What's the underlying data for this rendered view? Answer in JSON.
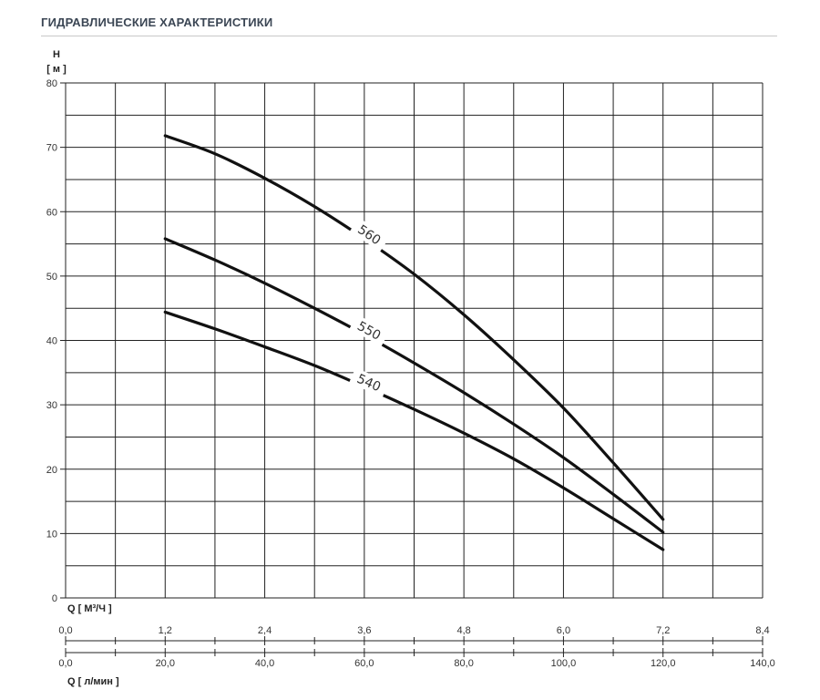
{
  "header": {
    "title": "ГИДРАВЛИЧЕСКИЕ ХАРАКТЕРИСТИКИ"
  },
  "chart_data": {
    "type": "line",
    "ylabel_line1": "H",
    "ylabel_line2": "[ м ]",
    "ylim": [
      0,
      80
    ],
    "yticks": [
      0,
      10,
      20,
      30,
      40,
      50,
      60,
      70,
      80
    ],
    "xlabel": "Q [ М³/Ч ]",
    "xlim": [
      0,
      8.4
    ],
    "xticks": [
      "0,0",
      "1,2",
      "2,4",
      "3,6",
      "4,8",
      "6,0",
      "7,2",
      "8,4"
    ],
    "xlabel2": "Q [ л/мин ]",
    "xlim2": [
      0,
      140
    ],
    "xticks2": [
      "0,0",
      "20,0",
      "40,0",
      "60,0",
      "80,0",
      "100,0",
      "120,0",
      "140,0"
    ],
    "grid": true,
    "series": [
      {
        "name": "560",
        "x": [
          1.2,
          1.8,
          2.4,
          3.0,
          3.6,
          4.2,
          4.8,
          5.4,
          6.0,
          6.6,
          7.2
        ],
        "y": [
          71.8,
          69.0,
          65.2,
          60.8,
          55.8,
          50.3,
          44.0,
          37.0,
          29.5,
          21.0,
          12.2
        ]
      },
      {
        "name": "550",
        "x": [
          1.2,
          1.8,
          2.4,
          3.0,
          3.6,
          4.2,
          4.8,
          5.4,
          6.0,
          6.6,
          7.2
        ],
        "y": [
          55.8,
          52.5,
          48.9,
          45.0,
          40.9,
          36.5,
          31.9,
          27.0,
          21.8,
          16.1,
          10.2
        ]
      },
      {
        "name": "540",
        "x": [
          1.2,
          1.8,
          2.4,
          3.0,
          3.6,
          4.2,
          4.8,
          5.4,
          6.0,
          6.6,
          7.2
        ],
        "y": [
          44.4,
          41.8,
          39.0,
          36.1,
          32.8,
          29.3,
          25.6,
          21.6,
          17.1,
          12.3,
          7.5
        ]
      }
    ]
  }
}
